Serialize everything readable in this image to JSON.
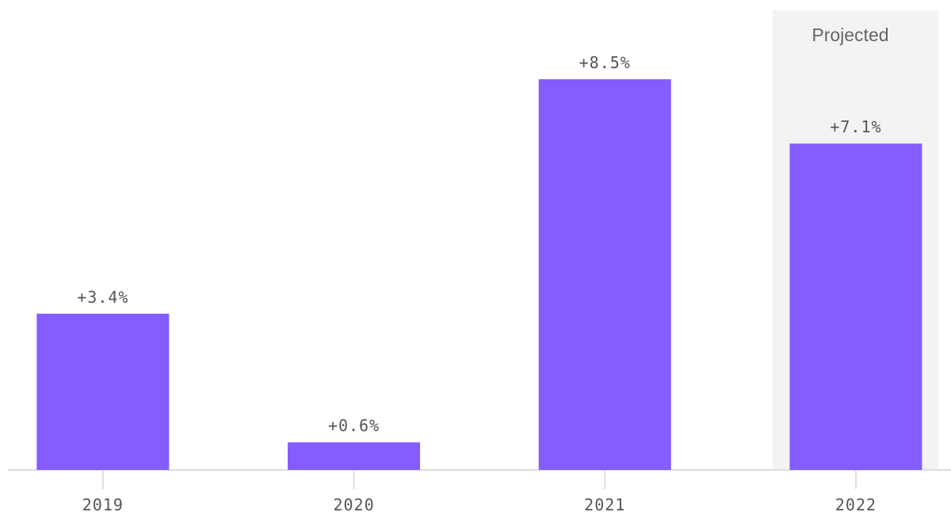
{
  "chart_data": {
    "type": "bar",
    "categories": [
      "2019",
      "2020",
      "2021",
      "2022"
    ],
    "values": [
      3.4,
      0.6,
      8.5,
      7.1
    ],
    "value_labels": [
      "+3.4%",
      "+0.6%",
      "+8.5%",
      "+7.1%"
    ],
    "color": "#845cff",
    "ylim": [
      0,
      10
    ],
    "shaded_region": {
      "label": "Projected",
      "categories": [
        "2022"
      ],
      "color": "#f3f3f3"
    }
  }
}
